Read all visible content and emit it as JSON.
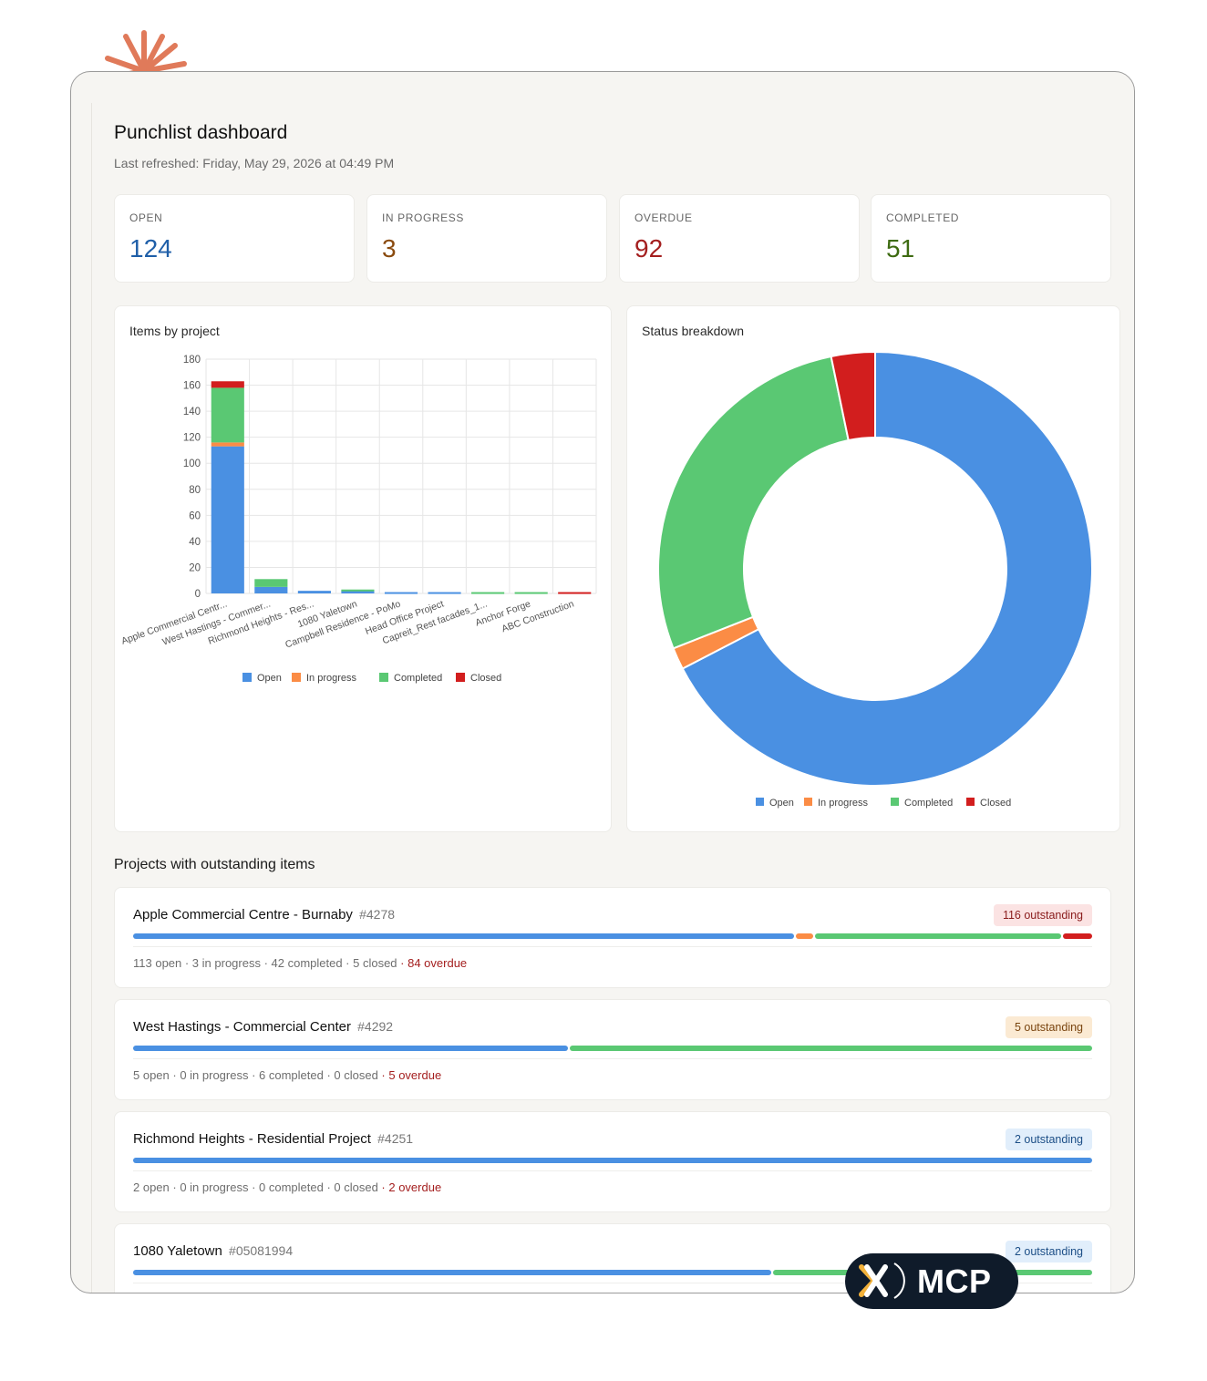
{
  "header": {
    "title": "Punchlist dashboard",
    "last_refreshed": "Last refreshed: Friday, May 29, 2026 at 04:49 PM"
  },
  "kpis": [
    {
      "label": "OPEN",
      "value": "124",
      "color": "#1f5fa8"
    },
    {
      "label": "IN PROGRESS",
      "value": "3",
      "color": "#8a4b0f"
    },
    {
      "label": "OVERDUE",
      "value": "92",
      "color": "#a41f1f"
    },
    {
      "label": "COMPLETED",
      "value": "51",
      "color": "#3e6b12"
    }
  ],
  "panels": {
    "bar_title": "Items by project",
    "donut_title": "Status breakdown"
  },
  "colors": {
    "open": "#4a90e2",
    "in_progress": "#fb8c45",
    "completed": "#5ac873",
    "closed": "#d21e1e"
  },
  "chart_data": [
    {
      "type": "bar",
      "stacked": true,
      "title": "Items by project",
      "categories": [
        "Apple Commercial Centr...",
        "West Hastings - Commer...",
        "Richmond Heights - Res...",
        "1080 Yaletown",
        "Campbell Residence - PoMo",
        "Head Office Project",
        "Capreit_Rest facades_1...",
        "Anchor Forge",
        "ABC Construction"
      ],
      "series": [
        {
          "name": "Open",
          "values": [
            113,
            5,
            2,
            2,
            1,
            1,
            0,
            0,
            0
          ]
        },
        {
          "name": "In progress",
          "values": [
            3,
            0,
            0,
            0,
            0,
            0,
            0,
            0,
            0
          ]
        },
        {
          "name": "Completed",
          "values": [
            42,
            6,
            0,
            1,
            0,
            0,
            1,
            1,
            0
          ]
        },
        {
          "name": "Closed",
          "values": [
            5,
            0,
            0,
            0,
            0,
            0,
            0,
            0,
            1
          ]
        }
      ],
      "ylim": [
        0,
        180
      ],
      "yticks": [
        0,
        20,
        40,
        60,
        80,
        100,
        120,
        140,
        160,
        180
      ],
      "grid": true,
      "legend": "bottom"
    },
    {
      "type": "pie",
      "donut": true,
      "title": "Status breakdown",
      "labels": [
        "Open",
        "In progress",
        "Completed",
        "Closed"
      ],
      "values": [
        124,
        3,
        51,
        6
      ],
      "legend": "bottom"
    }
  ],
  "projects_section_title": "Projects with outstanding items",
  "projects": [
    {
      "name": "Apple Commercial Centre - Burnaby",
      "id": "#4278",
      "badge": "116 outstanding",
      "badge_bg": "#fbe3e3",
      "badge_fg": "#8a1c1c",
      "counts": [
        113,
        3,
        42,
        5
      ],
      "stats": "113 open · 3 in progress · 42 completed · 5 closed",
      "overdue": " · 84 overdue"
    },
    {
      "name": "West Hastings - Commercial Center",
      "id": "#4292",
      "badge": "5 outstanding",
      "badge_bg": "#fbead3",
      "badge_fg": "#7a4510",
      "counts": [
        5,
        0,
        6,
        0
      ],
      "stats": "5 open · 0 in progress · 6 completed · 0 closed",
      "overdue": " · 5 overdue"
    },
    {
      "name": "Richmond Heights - Residential Project",
      "id": "#4251",
      "badge": "2 outstanding",
      "badge_bg": "#e1eefb",
      "badge_fg": "#1d4f87",
      "counts": [
        2,
        0,
        0,
        0
      ],
      "stats": "2 open · 0 in progress · 0 completed · 0 closed",
      "overdue": " · 2 overdue"
    },
    {
      "name": "1080 Yaletown",
      "id": "#05081994",
      "badge": "2 outstanding",
      "badge_bg": "#e1eefb",
      "badge_fg": "#1d4f87",
      "counts": [
        2,
        0,
        1,
        0
      ],
      "stats": "",
      "overdue": ""
    }
  ],
  "watermark": {
    "text": "MCP",
    "icon": "x-logo-icon"
  }
}
